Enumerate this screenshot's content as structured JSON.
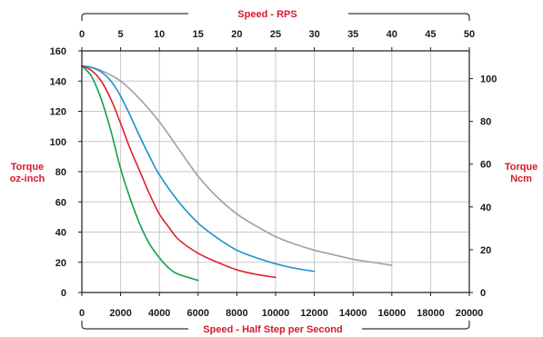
{
  "chart_data": {
    "type": "line",
    "top_axis": {
      "title": "Speed - RPS",
      "range": [
        0,
        50
      ],
      "ticks": [
        "0",
        "5",
        "10",
        "15",
        "20",
        "25",
        "30",
        "35",
        "40",
        "45",
        "50"
      ]
    },
    "bottom_axis": {
      "title": "Speed - Half Step per Second",
      "range": [
        0,
        20000
      ],
      "ticks": [
        "0",
        "2000",
        "4000",
        "6000",
        "8000",
        "10000",
        "12000",
        "14000",
        "16000",
        "18000",
        "20000"
      ]
    },
    "left_axis": {
      "title_line1": "Torque",
      "title_line2": "oz-inch",
      "range": [
        0,
        160
      ],
      "ticks": [
        "0",
        "20",
        "40",
        "60",
        "80",
        "100",
        "120",
        "140",
        "160"
      ]
    },
    "right_axis": {
      "title_line1": "Torque",
      "title_line2": "Ncm",
      "ticks": [
        "0",
        "20",
        "40",
        "60",
        "80",
        "100"
      ]
    },
    "grid": true,
    "series": [
      {
        "color": "#a0a0a0",
        "x": [
          0,
          500,
          1000,
          2000,
          3000,
          4000,
          5000,
          6000,
          7000,
          8000,
          9000,
          10000,
          11000,
          12000,
          13000,
          14000,
          15000,
          16000
        ],
        "y": [
          150,
          149,
          147,
          140,
          128,
          113,
          95,
          77,
          63,
          52,
          44,
          37,
          32,
          28,
          25,
          22,
          20,
          18
        ]
      },
      {
        "color": "#1a90d0",
        "x": [
          0,
          500,
          1000,
          1500,
          2000,
          2500,
          3000,
          3500,
          4000,
          5000,
          6000,
          7000,
          8000,
          9000,
          10000,
          11000,
          12000
        ],
        "y": [
          150,
          149,
          146,
          140,
          130,
          117,
          103,
          90,
          78,
          60,
          46,
          36,
          28,
          23,
          19,
          16,
          14
        ]
      },
      {
        "color": "#e0202e",
        "x": [
          0,
          500,
          1000,
          1500,
          2000,
          2500,
          3000,
          3500,
          4000,
          4500,
          5000,
          6000,
          7000,
          8000,
          9000,
          10000
        ],
        "y": [
          150,
          147,
          140,
          128,
          112,
          95,
          80,
          65,
          52,
          43,
          35,
          26,
          20,
          15,
          12,
          10
        ]
      },
      {
        "color": "#13a04a",
        "x": [
          0,
          500,
          1000,
          1500,
          2000,
          2500,
          3000,
          3500,
          4000,
          4500,
          5000,
          6000
        ],
        "y": [
          150,
          143,
          128,
          107,
          82,
          62,
          45,
          32,
          23,
          16,
          12,
          8
        ]
      }
    ]
  },
  "style": {
    "title_color": "#d7192b",
    "axis_color": "#1a1a1a",
    "grid_color": "#c8c8c8",
    "bracket_color": "#333333"
  }
}
